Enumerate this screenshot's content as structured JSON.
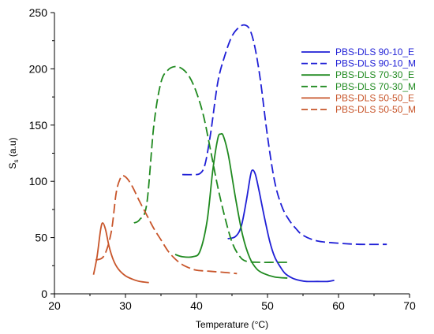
{
  "chart_data": {
    "type": "line",
    "xlabel": "Temperature (°C)",
    "ylabel_main": "S",
    "ylabel_sub": "s",
    "ylabel_tail": " (a.u)",
    "xlim": [
      20,
      70
    ],
    "ylim": [
      0,
      250
    ],
    "xticks": [
      20,
      30,
      40,
      50,
      60,
      70
    ],
    "yticks": [
      0,
      50,
      100,
      150,
      200,
      250
    ],
    "grid": false,
    "legend_position": "top-right",
    "series": [
      {
        "name": "PBS-DLS 90-10_E",
        "color": "#1f1fd6",
        "dash": "solid",
        "points": [
          [
            44.4,
            49
          ],
          [
            45.5,
            51
          ],
          [
            46.3,
            60
          ],
          [
            47.0,
            82
          ],
          [
            47.6,
            105
          ],
          [
            47.9,
            110
          ],
          [
            48.3,
            106
          ],
          [
            48.8,
            92
          ],
          [
            49.5,
            70
          ],
          [
            50.3,
            47
          ],
          [
            51.0,
            33
          ],
          [
            51.8,
            24
          ],
          [
            52.5,
            18
          ],
          [
            53.5,
            14
          ],
          [
            54.5,
            12
          ],
          [
            55.5,
            11
          ],
          [
            57.0,
            11
          ],
          [
            58.5,
            11
          ],
          [
            59.4,
            12
          ]
        ]
      },
      {
        "name": "PBS-DLS 90-10_M",
        "color": "#1f1fd6",
        "dash": "dashed",
        "points": [
          [
            38.0,
            106
          ],
          [
            39.5,
            106
          ],
          [
            40.5,
            107
          ],
          [
            41.2,
            115
          ],
          [
            42.0,
            143
          ],
          [
            43.0,
            188
          ],
          [
            44.0,
            212
          ],
          [
            45.0,
            229
          ],
          [
            46.0,
            237
          ],
          [
            46.8,
            239
          ],
          [
            47.5,
            235
          ],
          [
            48.2,
            220
          ],
          [
            49.0,
            190
          ],
          [
            50.0,
            140
          ],
          [
            51.0,
            100
          ],
          [
            52.0,
            78
          ],
          [
            53.0,
            66
          ],
          [
            54.0,
            58
          ],
          [
            55.0,
            52
          ],
          [
            57.0,
            47
          ],
          [
            60.0,
            45
          ],
          [
            63.0,
            44
          ],
          [
            66.8,
            44
          ]
        ]
      },
      {
        "name": "PBS-DLS 70-30_E",
        "color": "#208a20",
        "dash": "solid",
        "points": [
          [
            37.0,
            35
          ],
          [
            38.0,
            33
          ],
          [
            39.5,
            33
          ],
          [
            40.5,
            38
          ],
          [
            41.5,
            65
          ],
          [
            42.3,
            110
          ],
          [
            43.0,
            138
          ],
          [
            43.4,
            142
          ],
          [
            43.8,
            140
          ],
          [
            44.5,
            123
          ],
          [
            45.5,
            85
          ],
          [
            46.5,
            52
          ],
          [
            47.5,
            32
          ],
          [
            48.5,
            22
          ],
          [
            49.5,
            18
          ],
          [
            51.0,
            15
          ],
          [
            52.8,
            14
          ]
        ]
      },
      {
        "name": "PBS-DLS 70-30_M",
        "color": "#208a20",
        "dash": "dashed",
        "points": [
          [
            31.2,
            63
          ],
          [
            32.0,
            66
          ],
          [
            33.0,
            80
          ],
          [
            34.0,
            150
          ],
          [
            35.0,
            188
          ],
          [
            36.0,
            199
          ],
          [
            37.0,
            202
          ],
          [
            38.0,
            200
          ],
          [
            39.0,
            193
          ],
          [
            40.0,
            179
          ],
          [
            41.0,
            158
          ],
          [
            42.0,
            127
          ],
          [
            43.0,
            95
          ],
          [
            44.0,
            68
          ],
          [
            45.0,
            46
          ],
          [
            46.0,
            34
          ],
          [
            47.0,
            29
          ],
          [
            49.0,
            28
          ],
          [
            51.0,
            28
          ],
          [
            52.8,
            28
          ]
        ]
      },
      {
        "name": "PBS-DLS 50-50_E",
        "color": "#c8552a",
        "dash": "solid",
        "points": [
          [
            25.5,
            17
          ],
          [
            26.0,
            33
          ],
          [
            26.5,
            57
          ],
          [
            26.8,
            63
          ],
          [
            27.2,
            57
          ],
          [
            27.7,
            42
          ],
          [
            28.3,
            30
          ],
          [
            29.0,
            22
          ],
          [
            30.0,
            16
          ],
          [
            31.0,
            13
          ],
          [
            32.0,
            11
          ],
          [
            33.3,
            10
          ]
        ]
      },
      {
        "name": "PBS-DLS 50-50_M",
        "color": "#c8552a",
        "dash": "dashed",
        "points": [
          [
            25.8,
            30
          ],
          [
            27.0,
            34
          ],
          [
            28.0,
            55
          ],
          [
            28.7,
            90
          ],
          [
            29.3,
            103
          ],
          [
            29.7,
            105
          ],
          [
            30.3,
            102
          ],
          [
            31.0,
            95
          ],
          [
            32.0,
            82
          ],
          [
            33.0,
            70
          ],
          [
            34.0,
            58
          ],
          [
            35.0,
            48
          ],
          [
            36.0,
            38
          ],
          [
            37.0,
            31
          ],
          [
            38.0,
            26
          ],
          [
            39.0,
            23
          ],
          [
            40.0,
            21
          ],
          [
            42.0,
            20
          ],
          [
            44.0,
            19
          ],
          [
            45.7,
            18
          ]
        ]
      }
    ]
  }
}
